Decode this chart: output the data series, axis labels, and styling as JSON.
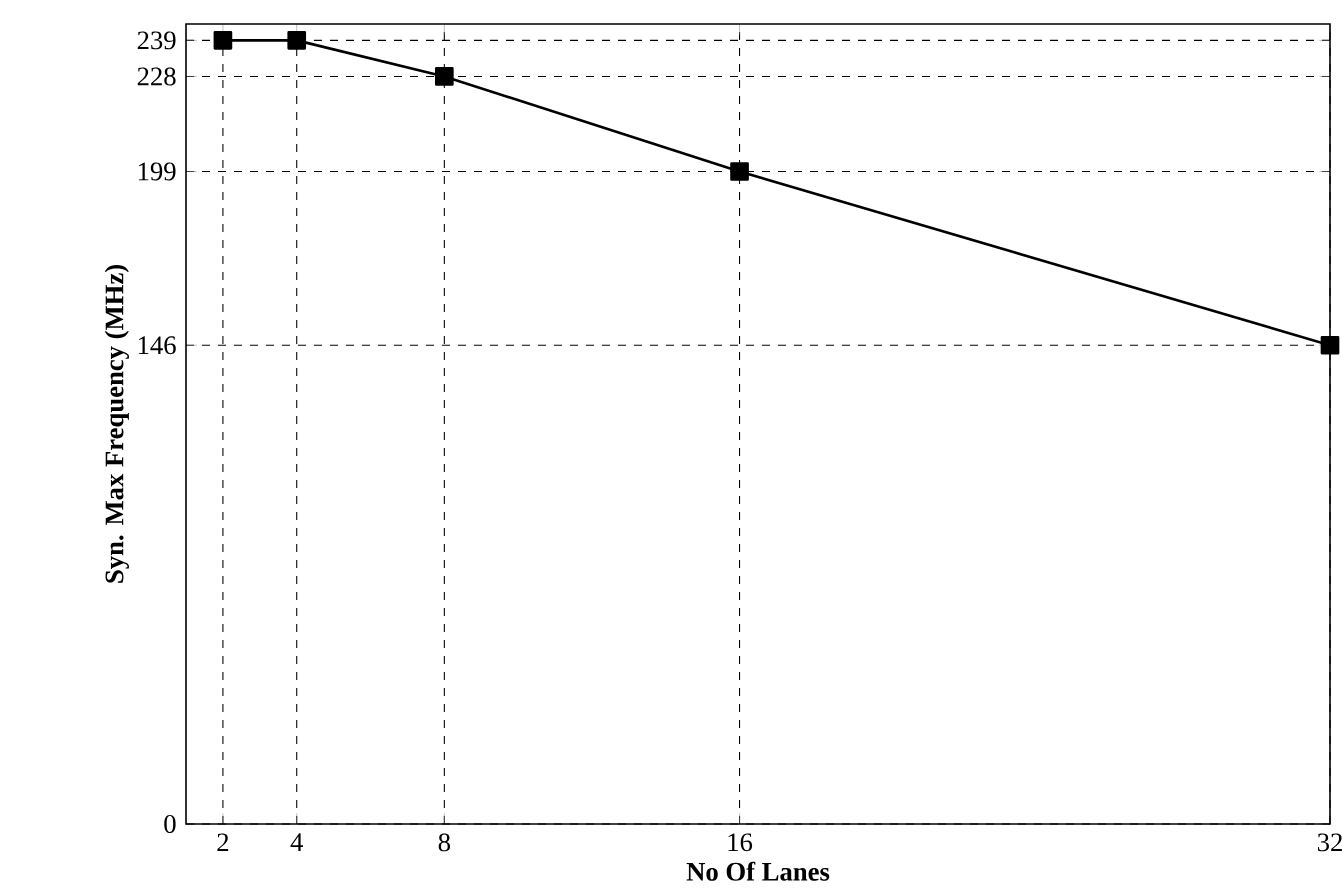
{
  "chart_data": {
    "type": "line",
    "xlabel": "No Of Lanes",
    "ylabel": "Syn. Max Frequency (MHz)",
    "x": [
      2,
      4,
      8,
      16,
      32
    ],
    "series": [
      {
        "color": "#000000",
        "values": [
          239,
          239,
          228,
          199,
          146
        ]
      }
    ],
    "xlim": [
      1,
      32
    ],
    "ylim": [
      0,
      244
    ],
    "xticks": [
      2,
      4,
      8,
      16,
      32
    ],
    "yticks": [
      0,
      146,
      199,
      228,
      239
    ],
    "grid": true,
    "marker": "square",
    "line_style": "solid"
  }
}
